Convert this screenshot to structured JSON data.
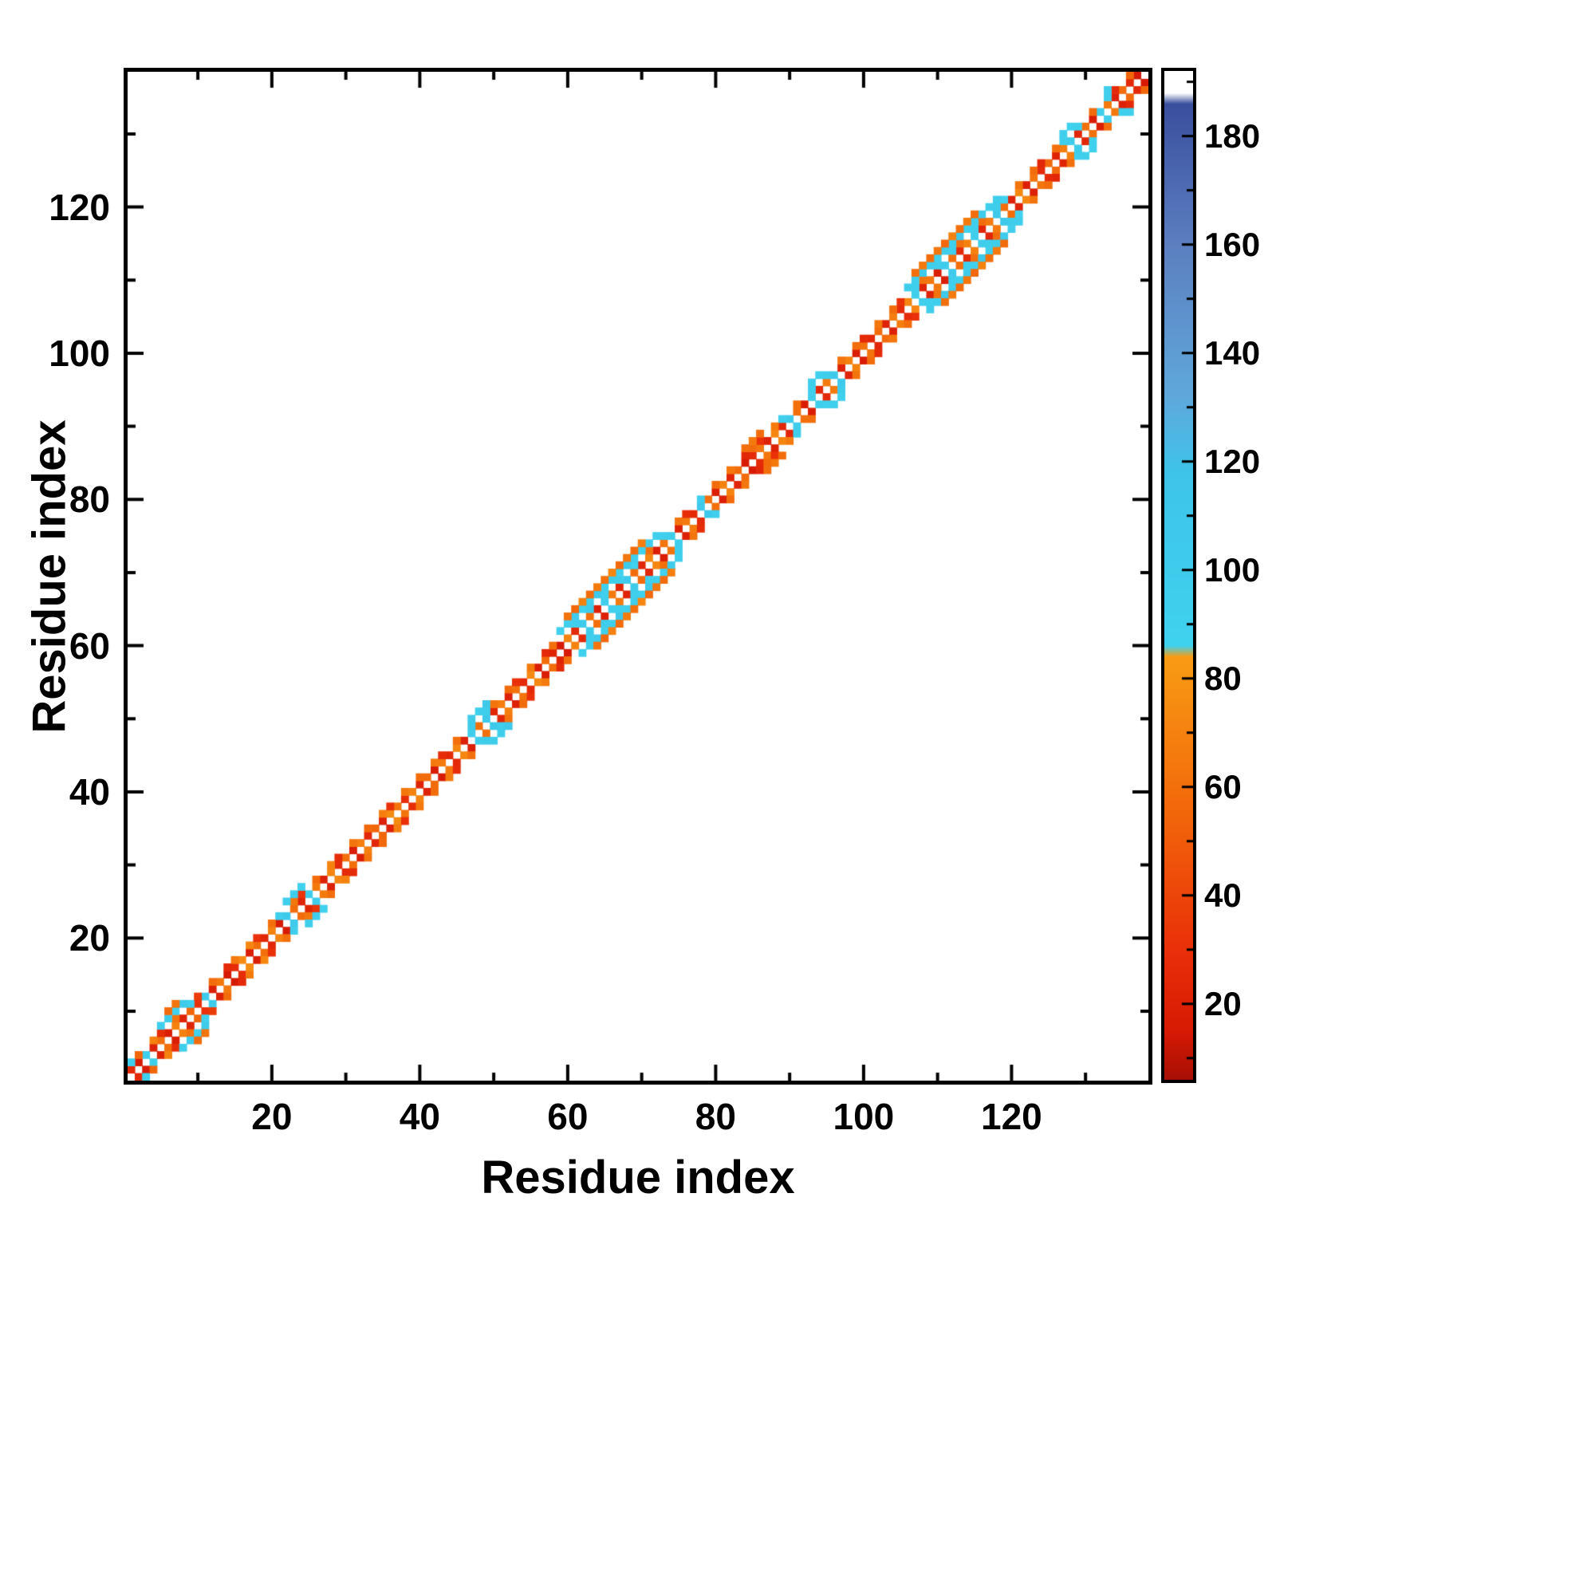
{
  "figure": {
    "background": "#ffffff",
    "frame_color": "#000000"
  },
  "chart_data": {
    "type": "heatmap",
    "title": "",
    "xlabel": "Residue index",
    "ylabel": "Residue index",
    "x_ticks": [
      20,
      40,
      60,
      80,
      100,
      120
    ],
    "y_ticks": [
      20,
      40,
      60,
      80,
      100,
      120
    ],
    "minor_tick_step": 10,
    "axis_range": [
      1,
      138
    ],
    "n_residues": 138,
    "grid": false,
    "legend_position": "none",
    "colorbar": {
      "range": [
        6,
        192
      ],
      "ticks": [
        20,
        40,
        60,
        80,
        100,
        120,
        140,
        160,
        180
      ],
      "stops": [
        {
          "v": 6,
          "color": "#a80f04"
        },
        {
          "v": 15,
          "color": "#d61a04"
        },
        {
          "v": 30,
          "color": "#e93009"
        },
        {
          "v": 55,
          "color": "#f2660a"
        },
        {
          "v": 84,
          "color": "#f89c14"
        },
        {
          "v": 86,
          "color": "#3fd2ee"
        },
        {
          "v": 118,
          "color": "#3ec4e8"
        },
        {
          "v": 132,
          "color": "#5fa8dc"
        },
        {
          "v": 160,
          "color": "#5c7fc0"
        },
        {
          "v": 186,
          "color": "#3a4f9e"
        },
        {
          "v": 188,
          "color": "#ffffff"
        },
        {
          "v": 192,
          "color": "#ffffff"
        }
      ]
    },
    "matrix": {
      "n": 138,
      "symmetric": true,
      "note": "Contact values by diagonal offset; index k of offsetN = contact between residue (k+1) and residue (k+1+N); 0 = no contact (white)",
      "offset1": [
        25,
        15,
        95,
        20,
        60,
        18,
        70,
        22,
        55,
        30,
        100,
        20,
        65,
        15,
        28,
        75,
        18,
        60,
        24,
        70,
        16,
        105,
        58,
        22,
        98,
        65,
        20,
        72,
        26,
        60,
        18,
        68,
        24,
        55,
        20,
        75,
        62,
        28,
        70,
        22,
        58,
        16,
        66,
        25,
        72,
        19,
        95,
        60,
        110,
        24,
        68,
        20,
        62,
        26,
        74,
        18,
        58,
        22,
        15,
        70,
        25,
        100,
        60,
        20,
        95,
        66,
        22,
        105,
        58,
        24,
        72,
        18,
        62,
        98,
        20,
        66,
        25,
        110,
        60,
        19,
        70,
        23,
        58,
        16,
        26,
        64,
        20,
        72,
        24,
        100,
        60,
        18,
        95,
        25,
        66,
        105,
        21,
        70,
        17,
        62,
        24,
        58,
        20,
        68,
        26,
        72,
        96,
        22,
        64,
        18,
        102,
        60,
        25,
        70,
        98,
        23,
        66,
        108,
        59,
        21,
        73,
        19,
        63,
        26,
        57,
        22,
        68,
        100,
        24,
        61,
        18,
        96,
        65,
        20,
        58,
        25,
        15
      ],
      "offset2": [
        95,
        55,
        0,
        70,
        28,
        0,
        62,
        0,
        90,
        35,
        0,
        58,
        0,
        26,
        66,
        0,
        72,
        30,
        0,
        60,
        95,
        0,
        64,
        32,
        0,
        58,
        0,
        70,
        27,
        0,
        62,
        0,
        56,
        0,
        68,
        30,
        0,
        64,
        0,
        58,
        0,
        66,
        28,
        0,
        60,
        0,
        100,
        0,
        92,
        62,
        0,
        58,
        30,
        0,
        66,
        0,
        25,
        60,
        0,
        0,
        92,
        0,
        98,
        0,
        90,
        0,
        95,
        0,
        88,
        0,
        60,
        0,
        94,
        0,
        62,
        28,
        0,
        96,
        0,
        58,
        0,
        64,
        0,
        24,
        58,
        30,
        0,
        66,
        92,
        0,
        60,
        0,
        90,
        0,
        98,
        0,
        62,
        0,
        58,
        26,
        0,
        64,
        0,
        58,
        30,
        0,
        90,
        62,
        0,
        96,
        0,
        94,
        60,
        0,
        92,
        58,
        0,
        98,
        88,
        0,
        62,
        0,
        58,
        24,
        0,
        60,
        94,
        0,
        90,
        0,
        58,
        0,
        92,
        26,
        0,
        55
      ],
      "offset3": [
        0,
        0,
        0,
        0,
        95,
        100,
        88,
        105,
        0,
        0,
        0,
        0,
        0,
        0,
        0,
        0,
        0,
        0,
        0,
        0,
        0,
        92,
        98,
        90,
        0,
        0,
        0,
        0,
        0,
        0,
        0,
        0,
        0,
        0,
        0,
        0,
        0,
        0,
        0,
        0,
        0,
        0,
        0,
        0,
        0,
        0,
        100,
        94,
        108,
        0,
        0,
        0,
        0,
        0,
        0,
        0,
        0,
        0,
        90,
        96,
        102,
        88,
        95,
        110,
        92,
        98,
        90,
        104,
        96,
        88,
        100,
        94,
        0,
        0,
        0,
        0,
        0,
        0,
        0,
        0,
        0,
        0,
        0,
        60,
        66,
        58,
        0,
        0,
        0,
        0,
        0,
        0,
        96,
        90,
        0,
        0,
        0,
        0,
        0,
        0,
        0,
        0,
        0,
        0,
        0,
        98,
        92,
        104,
        96,
        88,
        100,
        94,
        108,
        90,
        96,
        102,
        92,
        98,
        0,
        0,
        0,
        0,
        0,
        0,
        0,
        0,
        94,
        90,
        0,
        0,
        0,
        0,
        96,
        0,
        0
      ],
      "offset4": [
        0,
        0,
        0,
        0,
        0,
        58,
        62,
        0,
        0,
        0,
        0,
        0,
        0,
        0,
        0,
        0,
        0,
        0,
        0,
        0,
        0,
        0,
        0,
        0,
        0,
        0,
        0,
        0,
        0,
        0,
        0,
        0,
        0,
        0,
        0,
        0,
        0,
        0,
        0,
        0,
        0,
        0,
        0,
        0,
        0,
        0,
        0,
        0,
        0,
        0,
        0,
        0,
        0,
        0,
        0,
        0,
        0,
        0,
        0,
        62,
        55,
        70,
        58,
        66,
        60,
        72,
        56,
        64,
        58,
        68,
        0,
        0,
        0,
        0,
        0,
        0,
        0,
        0,
        0,
        0,
        0,
        0,
        0,
        0,
        0,
        0,
        0,
        0,
        0,
        0,
        0,
        0,
        0,
        0,
        0,
        0,
        0,
        0,
        0,
        0,
        0,
        0,
        0,
        0,
        0,
        0,
        60,
        66,
        58,
        64,
        56,
        70,
        60,
        66,
        58,
        0,
        0,
        0,
        0,
        0,
        0,
        0,
        0,
        0,
        0,
        0,
        0,
        0,
        0,
        0,
        0,
        0,
        0,
        0
      ]
    }
  }
}
